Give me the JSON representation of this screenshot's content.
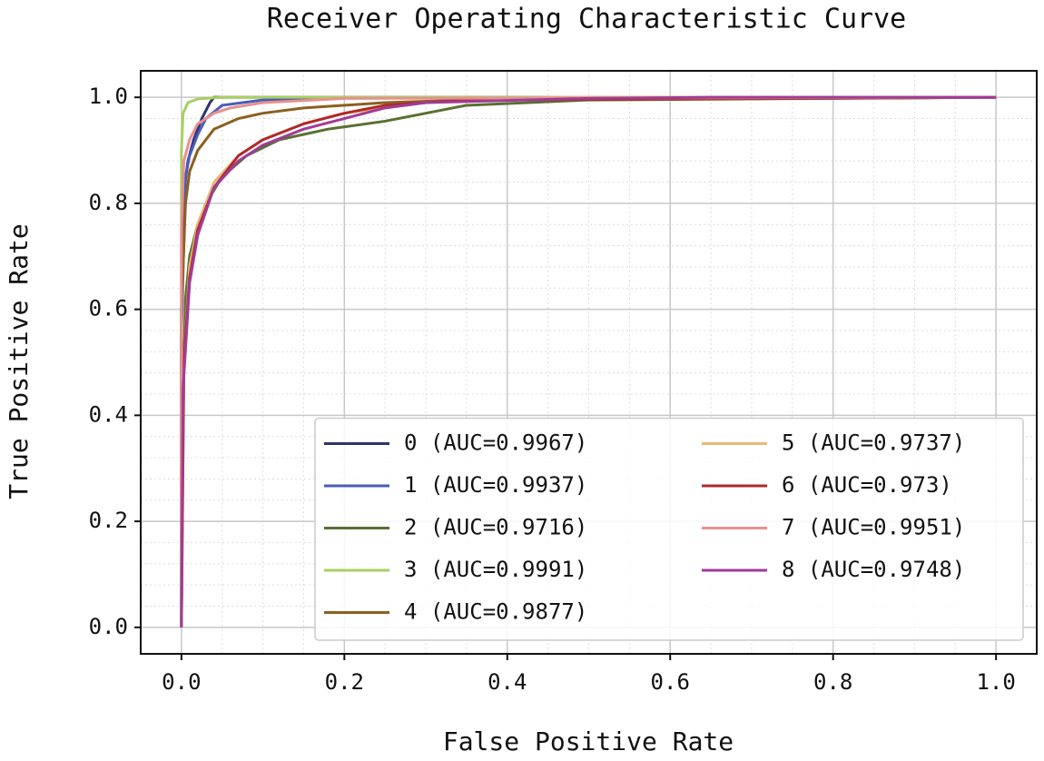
{
  "chart_data": {
    "type": "line",
    "title": "Receiver Operating Characteristic Curve",
    "x_label": "False Positive Rate",
    "y_label": "True Positive Rate",
    "xlim": [
      -0.05,
      1.05
    ],
    "ylim": [
      -0.05,
      1.05
    ],
    "xticks": [
      {
        "value": 0,
        "label": "0.0"
      },
      0.2,
      0.4,
      0.6,
      0.8,
      {
        "value": 1,
        "label": "1.0"
      }
    ],
    "yticks": [
      {
        "value": 0,
        "label": "0.0"
      },
      0.2,
      0.4,
      0.6,
      0.8,
      {
        "value": 1,
        "label": "1.0"
      }
    ],
    "xminorticks": [
      0.05,
      0.1,
      0.15,
      0.25,
      0.3,
      0.35,
      0.45,
      0.5,
      0.55,
      0.65,
      0.7,
      0.75,
      0.85,
      0.9,
      0.95
    ],
    "yminorticks": [
      0.04,
      0.08,
      0.12,
      0.16,
      0.24,
      0.28,
      0.32,
      0.36,
      0.44,
      0.48,
      0.52,
      0.56,
      0.64,
      0.68,
      0.72,
      0.76,
      0.84,
      0.88,
      0.92,
      0.96
    ],
    "grid": true,
    "minor_grid": true,
    "legend_loc": "lower right",
    "legend_columns": 2,
    "series": [
      {
        "name": "0 (AUC=0.9967)",
        "color": "#2e3272",
        "x": [
          0,
          0,
          0.003,
          0.008,
          0.015,
          0.025,
          0.035,
          0.04,
          1
        ],
        "values": [
          0,
          0.6,
          0.82,
          0.88,
          0.92,
          0.96,
          0.99,
          1,
          1
        ]
      },
      {
        "name": "1 (AUC=0.9937)",
        "color": "#4a5cb8",
        "x": [
          0,
          0,
          0.005,
          0.01,
          0.02,
          0.03,
          0.05,
          0.1,
          0.2,
          1
        ],
        "values": [
          0,
          0.55,
          0.85,
          0.89,
          0.93,
          0.96,
          0.985,
          0.995,
          1,
          1
        ]
      },
      {
        "name": "2 (AUC=0.9716)",
        "color": "#5a7030",
        "x": [
          0,
          0.002,
          0.005,
          0.01,
          0.02,
          0.03,
          0.05,
          0.08,
          0.12,
          0.18,
          0.25,
          0.3,
          0.35,
          0.5,
          1
        ],
        "values": [
          0,
          0.45,
          0.62,
          0.7,
          0.76,
          0.8,
          0.85,
          0.89,
          0.92,
          0.94,
          0.955,
          0.97,
          0.985,
          0.995,
          1
        ]
      },
      {
        "name": "3 (AUC=0.9991)",
        "color": "#a8d060",
        "x": [
          0,
          0,
          0.002,
          0.008,
          0.02,
          0.05,
          1
        ],
        "values": [
          0,
          0.9,
          0.97,
          0.99,
          0.997,
          1,
          1
        ]
      },
      {
        "name": "4 (AUC=0.9877)",
        "color": "#8b6020",
        "x": [
          0,
          0,
          0.005,
          0.01,
          0.02,
          0.04,
          0.07,
          0.1,
          0.15,
          0.25,
          0.35,
          1
        ],
        "values": [
          0,
          0.6,
          0.8,
          0.86,
          0.9,
          0.94,
          0.96,
          0.97,
          0.98,
          0.99,
          0.995,
          1
        ]
      },
      {
        "name": "5 (AUC=0.9737)",
        "color": "#e8b878",
        "x": [
          0,
          0.003,
          0.01,
          0.02,
          0.04,
          0.07,
          0.1,
          0.15,
          0.2,
          0.3,
          0.45,
          1
        ],
        "values": [
          0,
          0.5,
          0.68,
          0.76,
          0.84,
          0.89,
          0.92,
          0.95,
          0.97,
          0.99,
          1,
          1
        ]
      },
      {
        "name": "6 (AUC=0.973)",
        "color": "#b02828",
        "x": [
          0,
          0.003,
          0.01,
          0.02,
          0.04,
          0.07,
          0.1,
          0.15,
          0.2,
          0.25,
          0.35,
          1
        ],
        "values": [
          0,
          0.5,
          0.66,
          0.75,
          0.83,
          0.89,
          0.92,
          0.95,
          0.97,
          0.985,
          0.995,
          1
        ]
      },
      {
        "name": "7 (AUC=0.9951)",
        "color": "#e89090",
        "x": [
          0,
          0,
          0.003,
          0.01,
          0.02,
          0.04,
          0.06,
          0.1,
          0.2,
          1
        ],
        "values": [
          0,
          0.75,
          0.88,
          0.92,
          0.95,
          0.97,
          0.98,
          0.99,
          0.998,
          1
        ]
      },
      {
        "name": "8 (AUC=0.9748)",
        "color": "#a03c98",
        "x": [
          0,
          0.002,
          0.01,
          0.02,
          0.04,
          0.07,
          0.1,
          0.15,
          0.2,
          0.25,
          0.3,
          0.5,
          0.65,
          1
        ],
        "values": [
          0,
          0.45,
          0.65,
          0.74,
          0.83,
          0.88,
          0.91,
          0.94,
          0.96,
          0.98,
          0.99,
          0.998,
          1,
          1
        ]
      }
    ]
  }
}
